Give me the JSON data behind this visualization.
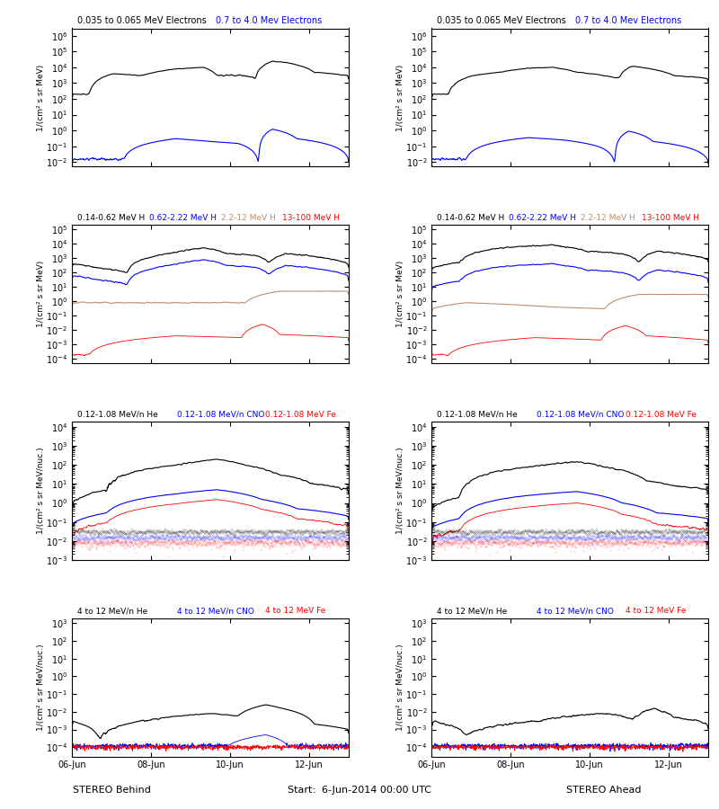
{
  "title_row0_black": "0.035 to 0.065 MeV Electrons",
  "title_row0_blue": "0.7 to 4.0 Mev Electrons",
  "title_row1_labels": [
    "0.14-0.62 MeV H",
    "0.62-2.22 MeV H",
    "2.2-12 MeV H",
    "13-100 MeV H"
  ],
  "title_row1_colors": [
    "black",
    "blue",
    "#bc8f6f",
    "red"
  ],
  "title_row2_labels": [
    "0.12-1.08 MeV/n He",
    "0.12-1.08 MeV/n CNO",
    "0.12-1.08 MeV Fe"
  ],
  "title_row2_colors": [
    "black",
    "blue",
    "red"
  ],
  "title_row3_labels": [
    "4 to 12 MeV/n He",
    "4 to 12 MeV/n CNO",
    "4 to 12 MeV Fe"
  ],
  "title_row3_colors": [
    "black",
    "blue",
    "red"
  ],
  "xlabel_left": "STEREO Behind",
  "xlabel_right": "STEREO Ahead",
  "xlabel_center": "Start:  6-Jun-2014 00:00 UTC",
  "xtick_labels": [
    "06-Jun",
    "08-Jun",
    "10-Jun",
    "12-Jun"
  ],
  "ylabel_row01": "1/(cm² s sr MeV)",
  "ylabel_row23": "1/(cm² s sr MeV/nuc.)",
  "row0_ylim": [
    0.005,
    3000000.0
  ],
  "row1_ylim": [
    5e-05,
    200000.0
  ],
  "row2_ylim": [
    0.001,
    20000.0
  ],
  "row3_ylim": [
    3e-05,
    2000.0
  ],
  "seed": 42
}
